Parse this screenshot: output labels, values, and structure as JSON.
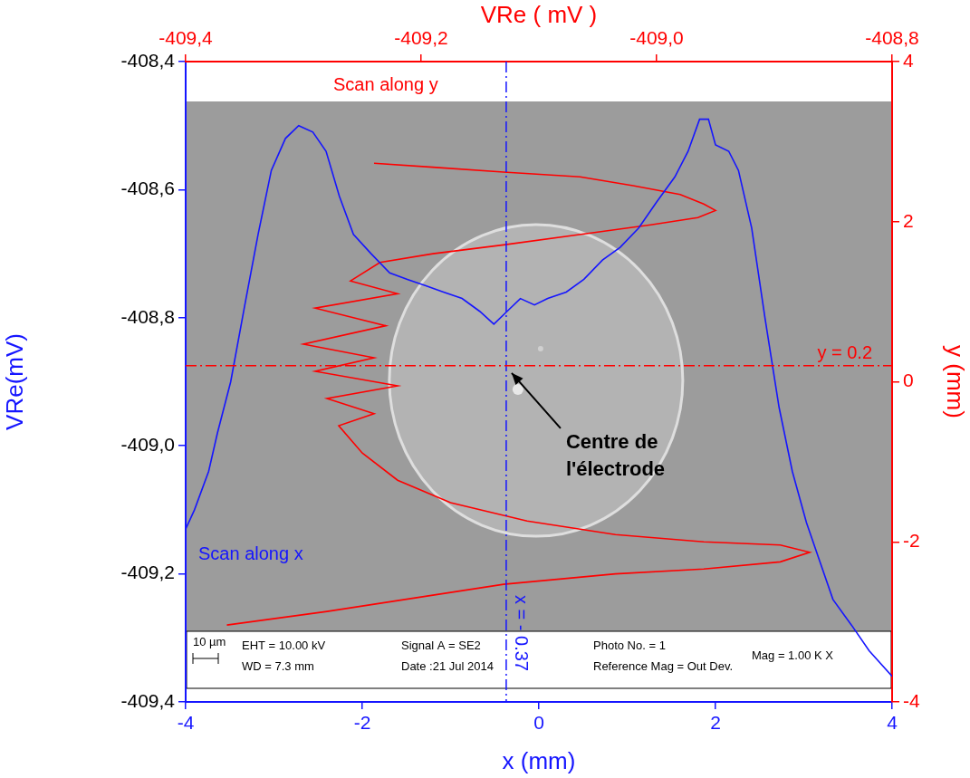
{
  "chart_data": {
    "type": "line",
    "x_label": "x (mm)",
    "y_label": "VRe(mV)",
    "x2_label": "VRe ( mV )",
    "y2_label": "y (mm)",
    "xlim": [
      -4,
      4
    ],
    "xticks": [
      -4,
      -2,
      0,
      2,
      4
    ],
    "ylim": [
      -409.4,
      -408.4
    ],
    "yticks": [
      {
        "value": -409.4,
        "label": "-409,4"
      },
      {
        "value": -409.2,
        "label": "-409,2"
      },
      {
        "value": -409.0,
        "label": "-409,0"
      },
      {
        "value": -408.8,
        "label": "-408,8"
      },
      {
        "value": -408.6,
        "label": "-408,6"
      },
      {
        "value": -408.4,
        "label": "-408,4"
      }
    ],
    "x2lim": [
      -409.4,
      -408.8
    ],
    "x2ticks": [
      {
        "value": -409.4,
        "label": "-409,4"
      },
      {
        "value": -409.2,
        "label": "-409,2"
      },
      {
        "value": -409.0,
        "label": "-409,0"
      },
      {
        "value": -408.8,
        "label": "-408,8"
      }
    ],
    "y2lim": [
      -4,
      4
    ],
    "y2ticks": [
      -4,
      -2,
      0,
      2,
      4
    ],
    "grid": false,
    "series": [
      {
        "name": "Scan along x",
        "color": "#1515ff",
        "axis": "y",
        "marker": "none",
        "line_style": "solid",
        "x": [
          -4.0,
          -3.9,
          -3.74,
          -3.64,
          -3.49,
          -3.33,
          -3.18,
          -3.03,
          -2.87,
          -2.72,
          -2.56,
          -2.41,
          -2.26,
          -2.1,
          -1.9,
          -1.69,
          -1.49,
          -1.28,
          -1.08,
          -0.87,
          -0.67,
          -0.51,
          -0.36,
          -0.21,
          -0.05,
          0.1,
          0.31,
          0.51,
          0.72,
          0.92,
          1.13,
          1.33,
          1.54,
          1.69,
          1.82,
          1.92,
          2.0,
          2.15,
          2.26,
          2.41,
          2.56,
          2.72,
          2.87,
          3.03,
          3.18,
          3.33,
          3.54,
          3.74,
          4.0
        ],
        "values": [
          -409.13,
          -409.1,
          -409.04,
          -408.98,
          -408.9,
          -408.78,
          -408.67,
          -408.57,
          -408.52,
          -408.5,
          -408.51,
          -408.54,
          -408.61,
          -408.67,
          -408.7,
          -408.73,
          -408.74,
          -408.75,
          -408.76,
          -408.77,
          -408.79,
          -408.81,
          -408.79,
          -408.77,
          -408.78,
          -408.77,
          -408.76,
          -408.74,
          -408.71,
          -408.69,
          -408.66,
          -408.62,
          -408.58,
          -408.54,
          -408.49,
          -408.49,
          -408.53,
          -408.54,
          -408.57,
          -408.66,
          -408.8,
          -408.94,
          -409.04,
          -409.12,
          -409.18,
          -409.24,
          -409.28,
          -409.32,
          -409.36
        ]
      },
      {
        "name": "Scan along y",
        "color": "#ff0000",
        "axis": "y2",
        "marker": "none",
        "line_style": "solid",
        "x": [
          -409.24,
          -409.19,
          -409.13,
          -409.065,
          -409.02,
          -408.98,
          -408.96,
          -408.95,
          -408.965,
          -409.005,
          -409.06,
          -409.13,
          -409.19,
          -409.235,
          -409.26,
          -409.22,
          -409.29,
          -409.23,
          -409.3,
          -409.24,
          -409.29,
          -409.22,
          -409.28,
          -409.24,
          -409.27,
          -409.25,
          -409.22,
          -409.175,
          -409.11,
          -409.035,
          -408.96,
          -408.895,
          -408.87,
          -408.895,
          -408.96,
          -409.035,
          -409.13,
          -409.205,
          -409.28,
          -409.365
        ],
        "values": [
          2.73,
          2.68,
          2.62,
          2.56,
          2.45,
          2.34,
          2.22,
          2.14,
          2.05,
          1.96,
          1.85,
          1.71,
          1.6,
          1.49,
          1.26,
          1.1,
          0.92,
          0.7,
          0.47,
          0.3,
          0.13,
          -0.05,
          -0.21,
          -0.4,
          -0.55,
          -0.89,
          -1.23,
          -1.51,
          -1.74,
          -1.91,
          -2.0,
          -2.04,
          -2.13,
          -2.25,
          -2.34,
          -2.4,
          -2.53,
          -2.7,
          -2.87,
          -3.04
        ]
      }
    ],
    "reference_lines": [
      {
        "axis": "x",
        "value": -0.37,
        "label": "x = - 0.37",
        "color": "#1515ff",
        "line_style": "dashdot"
      },
      {
        "axis": "y2",
        "value": 0.2,
        "label": "y = 0.2",
        "color": "#ff0000",
        "line_style": "dashdot"
      }
    ],
    "annotations": [
      {
        "text": "Centre de l'électrode",
        "color": "#000000"
      }
    ],
    "image_scale_bar": "10 µm",
    "image_caption": [
      [
        "EHT = 10.00 kV",
        "WD = 7.3 mm"
      ],
      [
        "Signal A = SE2",
        "Date :21 Jul 2014"
      ],
      [
        "Photo No. = 1",
        "Reference Mag = Out Dev."
      ],
      [
        "Mag = 1.00 K X"
      ]
    ]
  }
}
